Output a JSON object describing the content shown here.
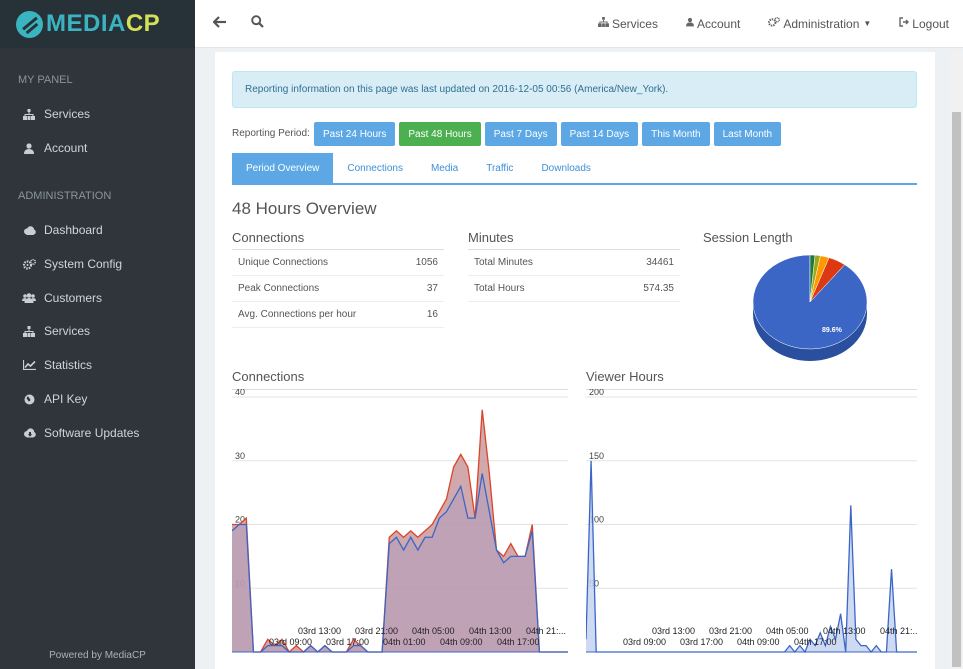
{
  "brand": {
    "part1": "MEDIA",
    "part2": "CP"
  },
  "sidebar": {
    "section1": "MY PANEL",
    "section2": "ADMINISTRATION",
    "my_panel_items": [
      {
        "label": "Services",
        "icon": "sitemap-icon"
      },
      {
        "label": "Account",
        "icon": "user-icon"
      }
    ],
    "admin_items": [
      {
        "label": "Dashboard",
        "icon": "cloud-icon"
      },
      {
        "label": "System Config",
        "icon": "cogs-icon"
      },
      {
        "label": "Customers",
        "icon": "users-icon"
      },
      {
        "label": "Services",
        "icon": "sitemap-icon"
      },
      {
        "label": "Statistics",
        "icon": "chart-line-icon"
      },
      {
        "label": "API Key",
        "icon": "globe-icon"
      },
      {
        "label": "Software Updates",
        "icon": "cloud-download-icon"
      }
    ],
    "powered": "Powered by MediaCP"
  },
  "topbar": {
    "services": "Services",
    "account": "Account",
    "administration": "Administration",
    "logout": "Logout"
  },
  "alert": "Reporting information on this page was last updated on 2016-12-05 00:56 (America/New_York).",
  "period": {
    "label": "Reporting Period:",
    "buttons": [
      "Past 24 Hours",
      "Past 48 Hours",
      "Past 7 Days",
      "Past 14 Days",
      "This Month",
      "Last Month"
    ],
    "active_index": 1
  },
  "tabs": [
    "Period Overview",
    "Connections",
    "Media",
    "Traffic",
    "Downloads"
  ],
  "overview_title": "48 Hours Overview",
  "connections_stats": {
    "title": "Connections",
    "rows": [
      {
        "label": "Unique Connections",
        "value": "1056"
      },
      {
        "label": "Peak Connections",
        "value": "37"
      },
      {
        "label": "Avg. Connections per hour",
        "value": "16"
      }
    ]
  },
  "minutes_stats": {
    "title": "Minutes",
    "rows": [
      {
        "label": "Total Minutes",
        "value": "34461"
      },
      {
        "label": "Total Hours",
        "value": "574.35"
      }
    ]
  },
  "colors": {
    "accent": "#5da8e4",
    "active_button": "#4caf50",
    "series_red": "#d9452a",
    "series_blue": "#3b66c6",
    "fill_red": "#c99a9d",
    "fill_blue": "#c5d4f0"
  },
  "chart_data": [
    {
      "type": "pie",
      "title": "Session Length",
      "slices": [
        {
          "value": 89.6,
          "color": "#3b66c6",
          "label": "89.6%"
        },
        {
          "value": 5.0,
          "color": "#dc3912"
        },
        {
          "value": 2.5,
          "color": "#ff9900"
        },
        {
          "value": 1.5,
          "color": "#9ea81a"
        },
        {
          "value": 1.4,
          "color": "#1f7a3a"
        }
      ]
    },
    {
      "type": "area",
      "title": "Connections",
      "ylim": [
        0,
        40
      ],
      "yticks": [
        10,
        20,
        30,
        40
      ],
      "xtick_labels_top": [
        "03rd 13:00",
        "03rd 21:00",
        "04th 05:00",
        "04th 13:00",
        "04th 21:..."
      ],
      "xtick_labels_bottom": [
        "03rd 09:00",
        "03rd 17:00",
        "04th 01:00",
        "04th 09:00",
        "04th 17:00"
      ],
      "series": [
        {
          "values": [
            20,
            20,
            21,
            0,
            0,
            2,
            1,
            2,
            0,
            1,
            0,
            1,
            0,
            1,
            0,
            0,
            0,
            2,
            1,
            0,
            0,
            0,
            18,
            19,
            18,
            19,
            18,
            19,
            20,
            22,
            24,
            29,
            31,
            29,
            21,
            38,
            28,
            16,
            15,
            17,
            15,
            15,
            20,
            0,
            0,
            0,
            0,
            0
          ]
        },
        {
          "values": [
            19,
            20,
            20,
            0,
            0,
            1,
            1,
            1,
            0,
            0,
            0,
            1,
            0,
            1,
            0,
            0,
            0,
            1,
            1,
            0,
            0,
            0,
            17,
            18,
            16,
            18,
            16,
            18,
            18,
            21,
            22,
            24,
            26,
            21,
            21,
            28,
            22,
            16,
            14,
            15,
            15,
            15,
            19,
            0,
            0,
            0,
            0,
            0
          ]
        }
      ]
    },
    {
      "type": "area",
      "title": "Viewer Hours",
      "ylim": [
        0,
        200
      ],
      "yticks": [
        50,
        100,
        150,
        200
      ],
      "xtick_labels_top": [
        "03rd 13:00",
        "03rd 21:00",
        "04th 05:00",
        "04th 13:00",
        "04th 21:..."
      ],
      "xtick_labels_bottom": [
        "03rd 09:00",
        "03rd 17:00",
        "04th 09:00",
        "04th 17:00"
      ],
      "series": [
        {
          "values": [
            10,
            150,
            0,
            0,
            0,
            0,
            0,
            0,
            0,
            0,
            0,
            0,
            0,
            0,
            0,
            0,
            0,
            0,
            0,
            0,
            0,
            0,
            0,
            0,
            0,
            0,
            0,
            0,
            0,
            0,
            0,
            0,
            0,
            0,
            0,
            0,
            0,
            0,
            0,
            0,
            5,
            0,
            5,
            0,
            10,
            5,
            15,
            5,
            20,
            10,
            30,
            0,
            115,
            10,
            5,
            5,
            0,
            5,
            0,
            0,
            65,
            0,
            0,
            0,
            0,
            0
          ]
        }
      ]
    }
  ]
}
